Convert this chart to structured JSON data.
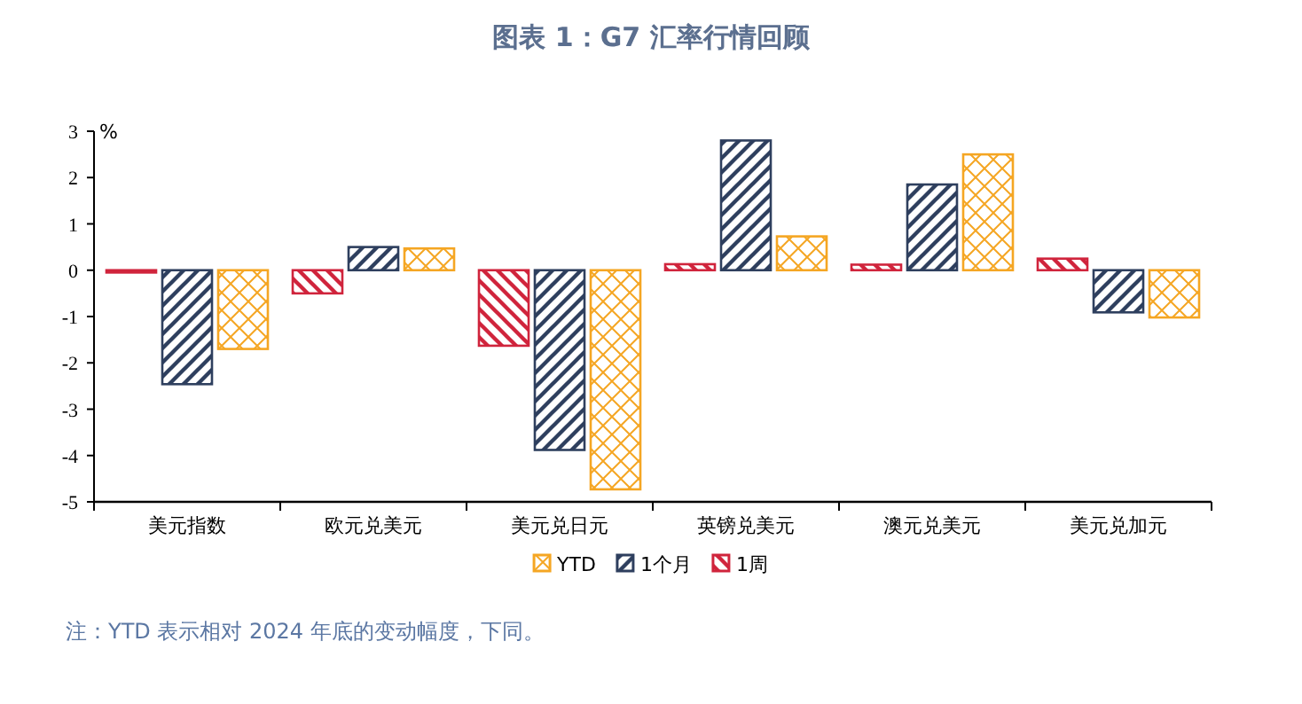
{
  "chart_data": {
    "type": "bar",
    "title": "图表 1：G7 汇率行情回顾",
    "ylabel": "%",
    "categories": [
      "美元指数",
      "欧元兑美元",
      "美元兑日元",
      "英镑兑美元",
      "澳元兑美元",
      "美元兑加元"
    ],
    "series": [
      {
        "name": "1周",
        "color": "#d0243c",
        "values": [
          -0.05,
          -0.5,
          -1.63,
          0.13,
          0.12,
          0.25
        ]
      },
      {
        "name": "1个月",
        "color": "#2e3f5e",
        "values": [
          -2.46,
          0.5,
          -3.88,
          2.8,
          1.85,
          -0.91
        ]
      },
      {
        "name": "YTD",
        "color": "#f5a623",
        "values": [
          -1.7,
          0.47,
          -4.73,
          0.73,
          2.5,
          -1.02
        ]
      }
    ],
    "ylim": [
      -5,
      3
    ],
    "yticks": [
      -5,
      -4,
      -3,
      -2,
      -1,
      0,
      1,
      2,
      3
    ],
    "grid": false,
    "legend": "bottom",
    "annotations": [
      "注：YTD 表示相对 2024 年底的变动幅度，下同。"
    ]
  }
}
